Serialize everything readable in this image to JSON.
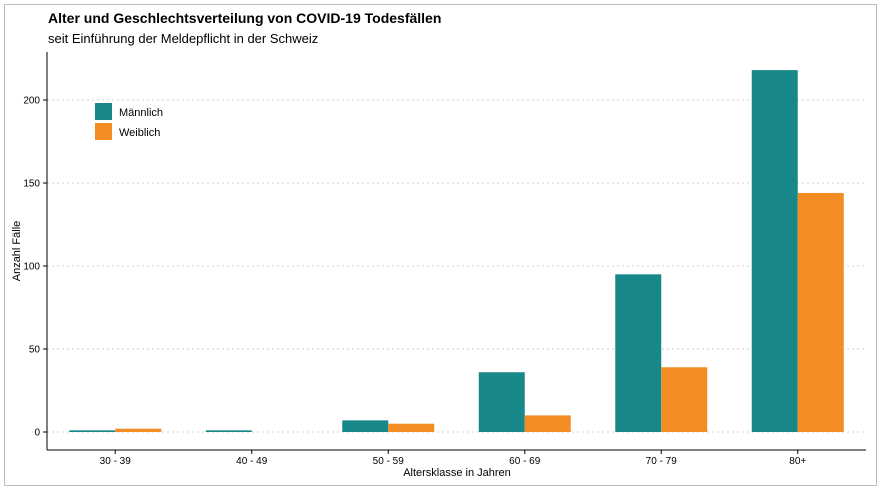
{
  "chart_data": {
    "type": "bar",
    "title": "Alter und Geschlechtsverteilung von COVID-19 Todesfällen",
    "subtitle": "seit Einführung der Meldepflicht in der Schweiz",
    "xlabel": "Altersklasse in Jahren",
    "ylabel": "Anzahl Fälle",
    "categories": [
      "30 - 39",
      "40 - 49",
      "50 - 59",
      "60 - 69",
      "70 - 79",
      "80+"
    ],
    "series": [
      {
        "name": "Männlich",
        "color": "#17878a",
        "values": [
          1,
          1,
          7,
          36,
          95,
          218
        ]
      },
      {
        "name": "Weiblich",
        "color": "#f28c23",
        "values": [
          2,
          0,
          5,
          10,
          39,
          144
        ]
      }
    ],
    "ylim": [
      0,
      230
    ],
    "yticks": [
      0,
      50,
      100,
      150,
      200
    ],
    "grid": true,
    "legend_position": "top-left"
  }
}
